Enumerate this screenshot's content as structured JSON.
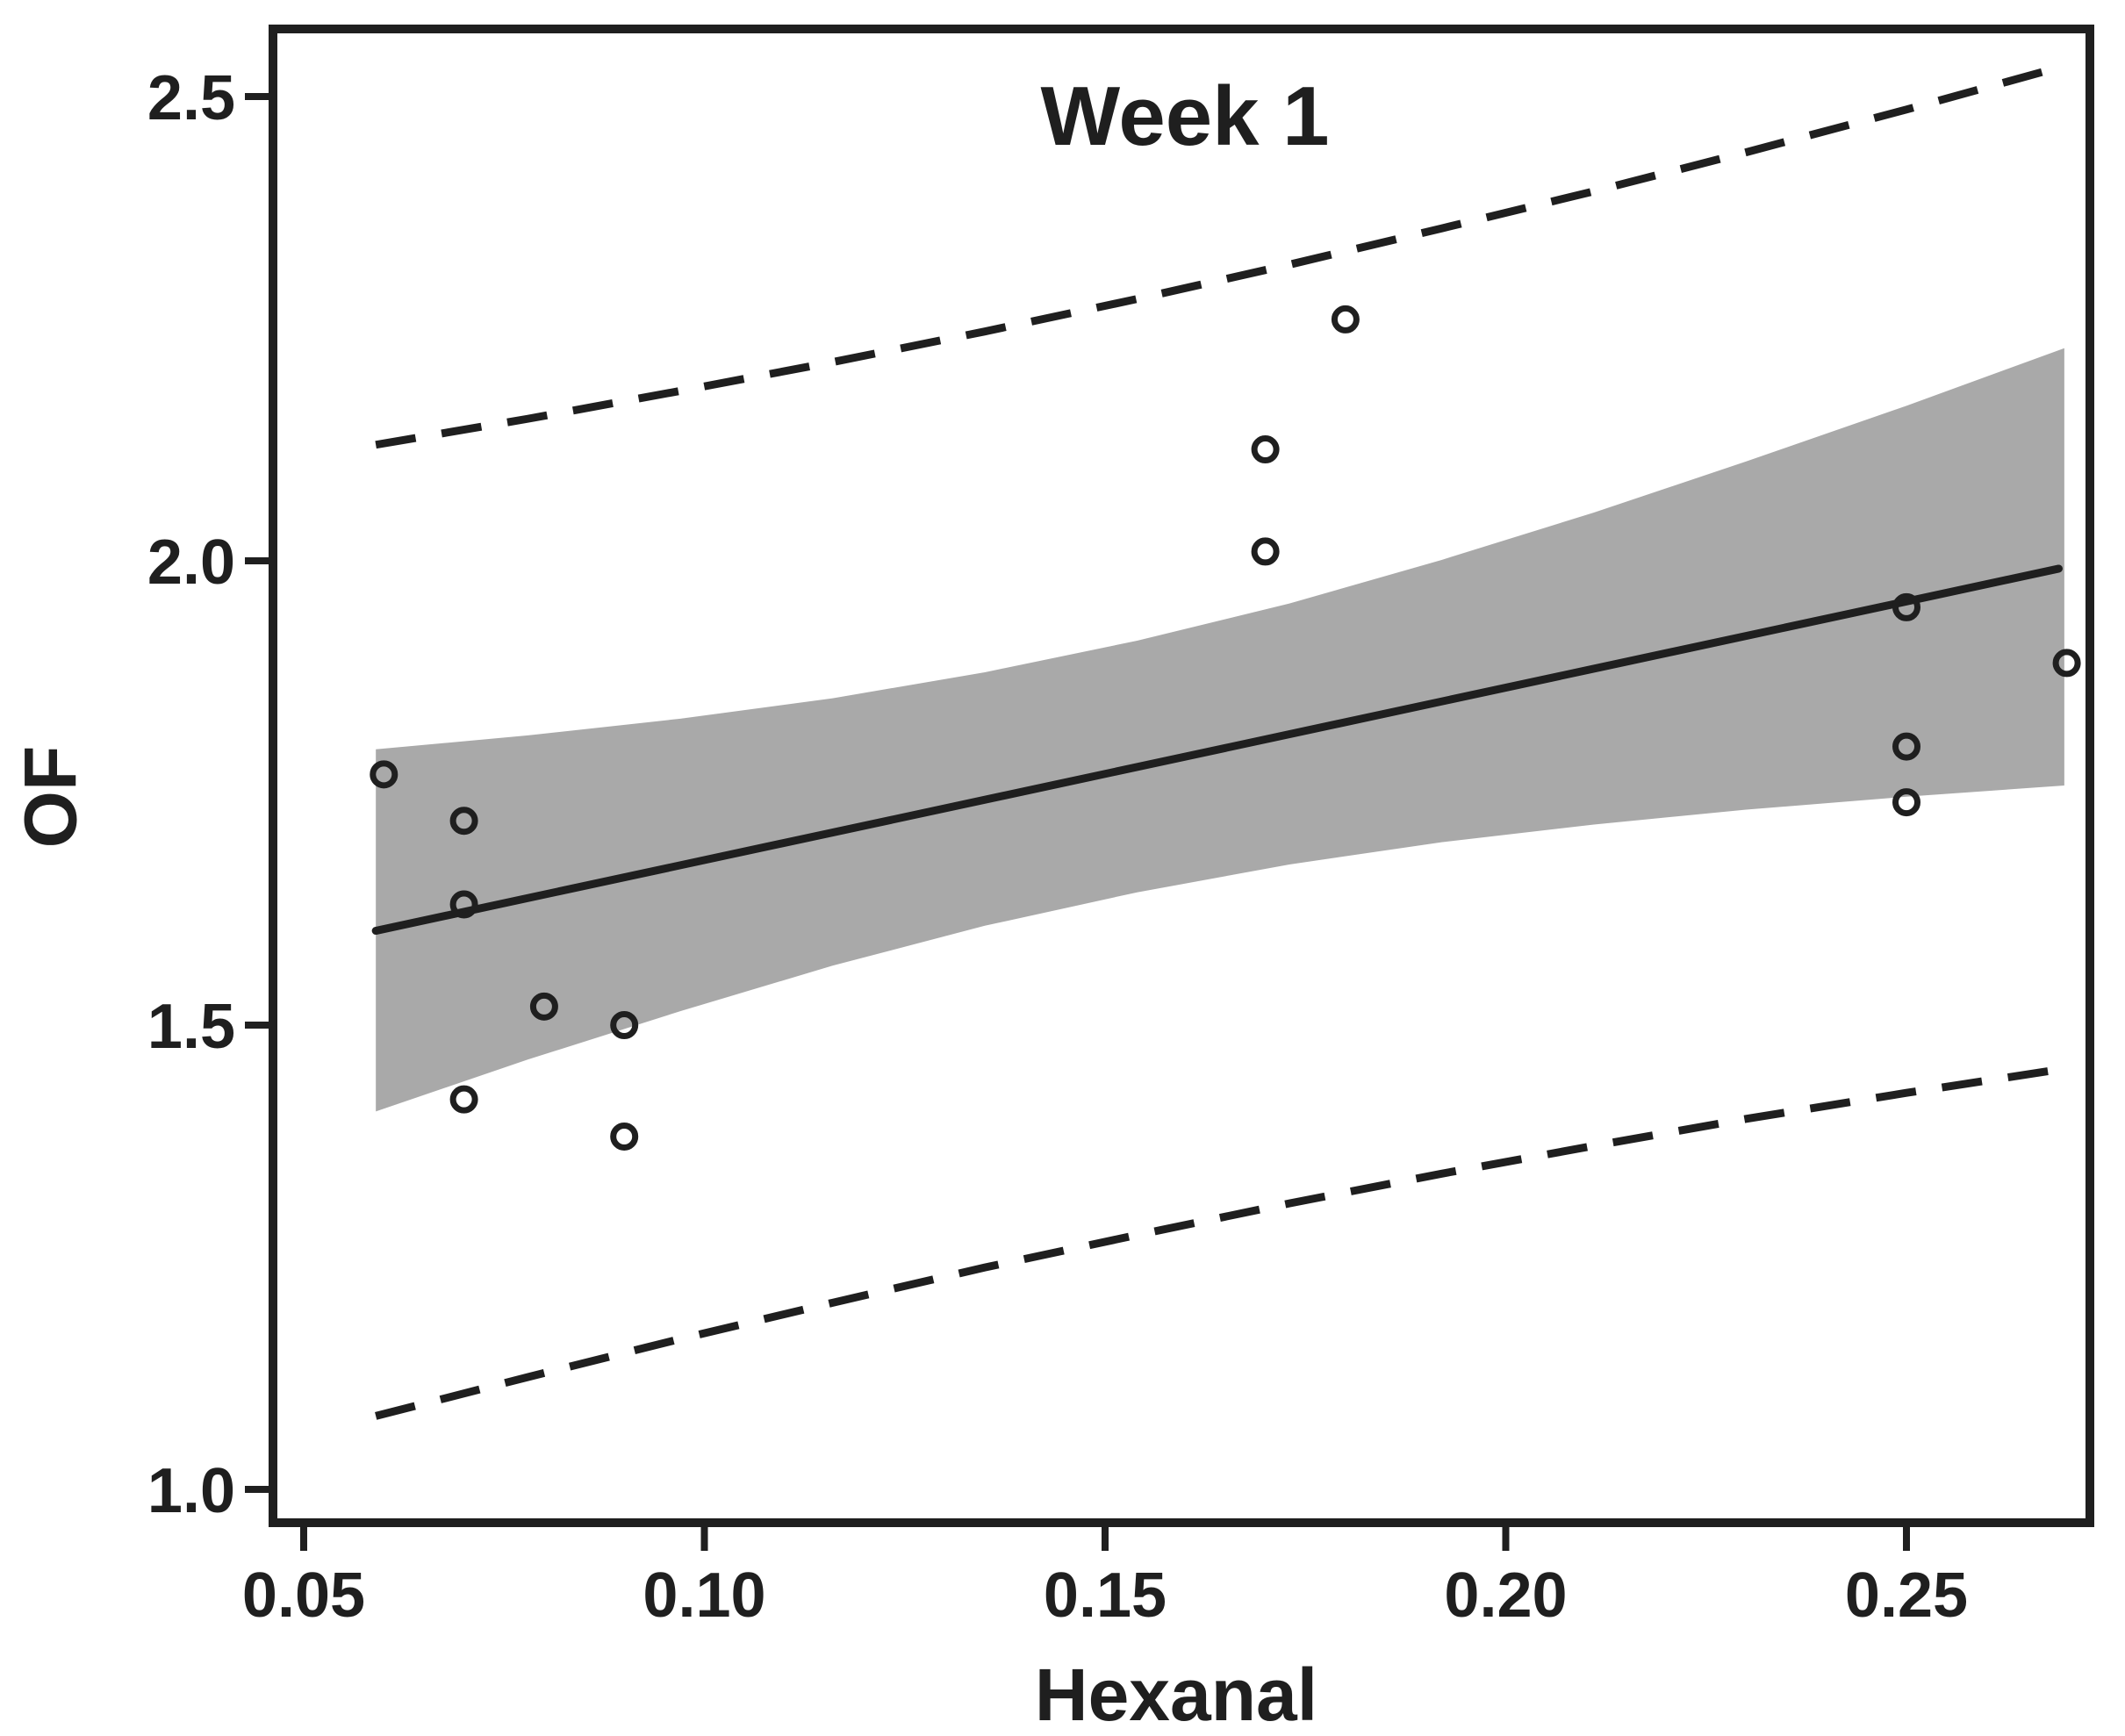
{
  "figure": {
    "title": "Week 1",
    "x_axis_label": "Hexanal",
    "y_axis_label": "OF"
  },
  "chart_data": {
    "type": "scatter",
    "title": "Week 1",
    "xlabel": "Hexanal",
    "ylabel": "OF",
    "xlim": [
      0.0464,
      0.2729
    ],
    "ylim": [
      0.961,
      2.578
    ],
    "grid": false,
    "legend": null,
    "xticks": [
      0.05,
      0.1,
      0.15,
      0.2,
      0.25
    ],
    "xtick_labels": [
      "0.05",
      "0.10",
      "0.15",
      "0.20",
      "0.25"
    ],
    "yticks": [
      1.0,
      1.5,
      2.0,
      2.5
    ],
    "ytick_labels": [
      "1.0",
      "1.5",
      "2.0",
      "2.5"
    ],
    "points": [
      [
        0.06,
        1.77
      ],
      [
        0.07,
        1.72
      ],
      [
        0.07,
        1.63
      ],
      [
        0.08,
        1.52
      ],
      [
        0.09,
        1.5
      ],
      [
        0.07,
        1.42
      ],
      [
        0.09,
        1.38
      ],
      [
        0.17,
        2.12
      ],
      [
        0.17,
        2.01
      ],
      [
        0.18,
        2.26
      ],
      [
        0.25,
        1.95
      ],
      [
        0.25,
        1.8
      ],
      [
        0.25,
        1.74
      ],
      [
        0.27,
        1.89
      ]
    ],
    "fit_line": {
      "slope": 1.857,
      "intercept": 1.492,
      "x_start": 0.059,
      "x_end": 0.269
    },
    "confidence_band": {
      "x": [
        0.059,
        0.078,
        0.097,
        0.116,
        0.135,
        0.154,
        0.173,
        0.192,
        0.211,
        0.23,
        0.25,
        0.2697
      ],
      "upper": [
        1.797,
        1.812,
        1.83,
        1.852,
        1.88,
        1.914,
        1.954,
        2.001,
        2.052,
        2.107,
        2.167,
        2.229
      ],
      "lower": [
        1.407,
        1.463,
        1.515,
        1.564,
        1.607,
        1.643,
        1.673,
        1.697,
        1.716,
        1.732,
        1.746,
        1.758
      ]
    },
    "prediction_interval": {
      "style": "dashed",
      "x": [
        0.059,
        0.078,
        0.097,
        0.116,
        0.135,
        0.154,
        0.173,
        0.192,
        0.211,
        0.23,
        0.25,
        0.2697
      ],
      "upper": [
        2.125,
        2.153,
        2.183,
        2.214,
        2.247,
        2.282,
        2.319,
        2.358,
        2.398,
        2.44,
        2.486,
        2.533
      ],
      "lower": [
        1.079,
        1.121,
        1.162,
        1.201,
        1.239,
        1.274,
        1.308,
        1.34,
        1.37,
        1.399,
        1.427,
        1.453
      ]
    },
    "colors": {
      "band": "#a9a9a9",
      "stroke": "#1f1f1f",
      "background": "#ffffff"
    }
  }
}
